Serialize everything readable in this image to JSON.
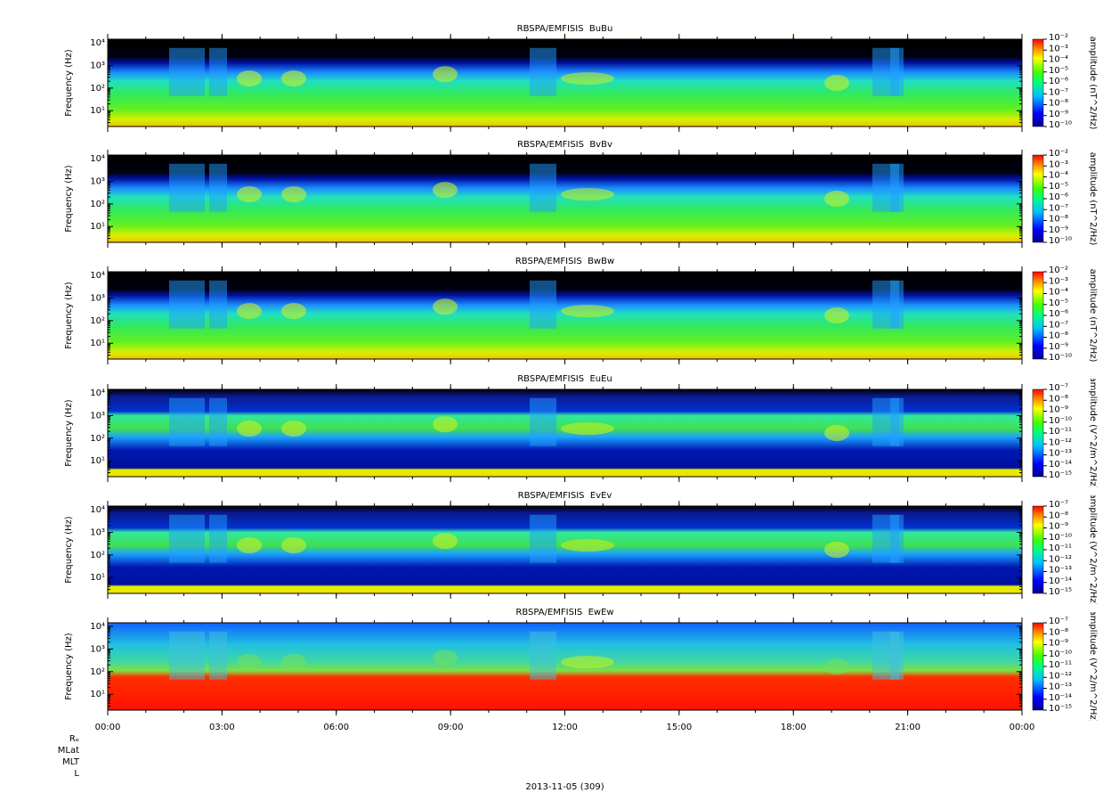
{
  "chart_data": [
    {
      "type": "spectrogram",
      "title": "RBSPA/EMFISIS  BuBu",
      "ylabel": "Frequency (Hz)",
      "ylog": true,
      "ylim": [
        2,
        14400
      ],
      "yticks": [
        {
          "value": 10,
          "label": "10¹"
        },
        {
          "value": 100,
          "label": "10²"
        },
        {
          "value": 1000,
          "label": "10³"
        },
        {
          "value": 10000,
          "label": "10⁴"
        }
      ],
      "xlim": [
        0,
        24
      ],
      "xticks": [
        0,
        3,
        6,
        9,
        12,
        15,
        18,
        21,
        24
      ],
      "zlabel": "amplitude (nT^2/Hz)",
      "zlog": true,
      "zlim": [
        1e-10,
        0.01
      ],
      "zticks": [
        {
          "value": 0.01,
          "label": "10⁻²"
        },
        {
          "value": 0.001,
          "label": "10⁻³"
        },
        {
          "value": 0.0001,
          "label": "10⁻⁴"
        },
        {
          "value": 1e-05,
          "label": "10⁻⁵"
        },
        {
          "value": 1e-06,
          "label": "10⁻⁶"
        },
        {
          "value": 1e-07,
          "label": "10⁻⁷"
        },
        {
          "value": 1e-08,
          "label": "10⁻⁸"
        },
        {
          "value": 1e-09,
          "label": "10⁻⁹"
        },
        {
          "value": 1e-10,
          "label": "10⁻¹⁰"
        }
      ]
    },
    {
      "type": "spectrogram",
      "title": "RBSPA/EMFISIS  BvBv",
      "ylabel": "Frequency (Hz)",
      "ylog": true,
      "ylim": [
        2,
        14400
      ],
      "yticks": [
        {
          "value": 10,
          "label": "10¹"
        },
        {
          "value": 100,
          "label": "10²"
        },
        {
          "value": 1000,
          "label": "10³"
        },
        {
          "value": 10000,
          "label": "10⁴"
        }
      ],
      "xlim": [
        0,
        24
      ],
      "xticks": [
        0,
        3,
        6,
        9,
        12,
        15,
        18,
        21,
        24
      ],
      "zlabel": "amplitude (nT^2/Hz)",
      "zlog": true,
      "zlim": [
        1e-10,
        0.01
      ],
      "zticks": [
        {
          "value": 0.01,
          "label": "10⁻²"
        },
        {
          "value": 0.001,
          "label": "10⁻³"
        },
        {
          "value": 0.0001,
          "label": "10⁻⁴"
        },
        {
          "value": 1e-05,
          "label": "10⁻⁵"
        },
        {
          "value": 1e-06,
          "label": "10⁻⁶"
        },
        {
          "value": 1e-07,
          "label": "10⁻⁷"
        },
        {
          "value": 1e-08,
          "label": "10⁻⁸"
        },
        {
          "value": 1e-09,
          "label": "10⁻⁹"
        },
        {
          "value": 1e-10,
          "label": "10⁻¹⁰"
        }
      ]
    },
    {
      "type": "spectrogram",
      "title": "RBSPA/EMFISIS  BwBw",
      "ylabel": "Frequency (Hz)",
      "ylog": true,
      "ylim": [
        2,
        14400
      ],
      "yticks": [
        {
          "value": 10,
          "label": "10¹"
        },
        {
          "value": 100,
          "label": "10²"
        },
        {
          "value": 1000,
          "label": "10³"
        },
        {
          "value": 10000,
          "label": "10⁴"
        }
      ],
      "xlim": [
        0,
        24
      ],
      "xticks": [
        0,
        3,
        6,
        9,
        12,
        15,
        18,
        21,
        24
      ],
      "zlabel": "amplitude (nT^2/Hz)",
      "zlog": true,
      "zlim": [
        1e-10,
        0.01
      ],
      "zticks": [
        {
          "value": 0.01,
          "label": "10⁻²"
        },
        {
          "value": 0.001,
          "label": "10⁻³"
        },
        {
          "value": 0.0001,
          "label": "10⁻⁴"
        },
        {
          "value": 1e-05,
          "label": "10⁻⁵"
        },
        {
          "value": 1e-06,
          "label": "10⁻⁶"
        },
        {
          "value": 1e-07,
          "label": "10⁻⁷"
        },
        {
          "value": 1e-08,
          "label": "10⁻⁸"
        },
        {
          "value": 1e-09,
          "label": "10⁻⁹"
        },
        {
          "value": 1e-10,
          "label": "10⁻¹⁰"
        }
      ]
    },
    {
      "type": "spectrogram",
      "title": "RBSPA/EMFISIS  EuEu",
      "ylabel": "Frequency (Hz)",
      "ylog": true,
      "ylim": [
        2,
        14400
      ],
      "yticks": [
        {
          "value": 10,
          "label": "10¹"
        },
        {
          "value": 100,
          "label": "10²"
        },
        {
          "value": 1000,
          "label": "10³"
        },
        {
          "value": 10000,
          "label": "10⁴"
        }
      ],
      "xlim": [
        0,
        24
      ],
      "xticks": [
        0,
        3,
        6,
        9,
        12,
        15,
        18,
        21,
        24
      ],
      "zlabel": "amplitude (V^2/m^2/Hz)",
      "zlog": true,
      "zlim": [
        1e-15,
        1e-07
      ],
      "zticks": [
        {
          "value": 1e-07,
          "label": "10⁻⁷"
        },
        {
          "value": 1e-08,
          "label": "10⁻⁸"
        },
        {
          "value": 1e-09,
          "label": "10⁻⁹"
        },
        {
          "value": 1e-10,
          "label": "10⁻¹⁰"
        },
        {
          "value": 1e-11,
          "label": "10⁻¹¹"
        },
        {
          "value": 1e-12,
          "label": "10⁻¹²"
        },
        {
          "value": 1e-13,
          "label": "10⁻¹³"
        },
        {
          "value": 1e-14,
          "label": "10⁻¹⁴"
        },
        {
          "value": 1e-15,
          "label": "10⁻¹⁵"
        }
      ]
    },
    {
      "type": "spectrogram",
      "title": "RBSPA/EMFISIS  EvEv",
      "ylabel": "Frequency (Hz)",
      "ylog": true,
      "ylim": [
        2,
        14400
      ],
      "yticks": [
        {
          "value": 10,
          "label": "10¹"
        },
        {
          "value": 100,
          "label": "10²"
        },
        {
          "value": 1000,
          "label": "10³"
        },
        {
          "value": 10000,
          "label": "10⁴"
        }
      ],
      "xlim": [
        0,
        24
      ],
      "xticks": [
        0,
        3,
        6,
        9,
        12,
        15,
        18,
        21,
        24
      ],
      "zlabel": "amplitude (V^2/m^2/Hz)",
      "zlog": true,
      "zlim": [
        1e-15,
        1e-07
      ],
      "zticks": [
        {
          "value": 1e-07,
          "label": "10⁻⁷"
        },
        {
          "value": 1e-08,
          "label": "10⁻⁸"
        },
        {
          "value": 1e-09,
          "label": "10⁻⁹"
        },
        {
          "value": 1e-10,
          "label": "10⁻¹⁰"
        },
        {
          "value": 1e-11,
          "label": "10⁻¹¹"
        },
        {
          "value": 1e-12,
          "label": "10⁻¹²"
        },
        {
          "value": 1e-13,
          "label": "10⁻¹³"
        },
        {
          "value": 1e-14,
          "label": "10⁻¹⁴"
        },
        {
          "value": 1e-15,
          "label": "10⁻¹⁵"
        }
      ]
    },
    {
      "type": "spectrogram",
      "title": "RBSPA/EMFISIS  EwEw",
      "ylabel": "Frequency (Hz)",
      "ylog": true,
      "ylim": [
        2,
        14400
      ],
      "yticks": [
        {
          "value": 10,
          "label": "10¹"
        },
        {
          "value": 100,
          "label": "10²"
        },
        {
          "value": 1000,
          "label": "10³"
        },
        {
          "value": 10000,
          "label": "10⁴"
        }
      ],
      "xlim": [
        0,
        24
      ],
      "xticks": [
        {
          "value": 0,
          "label": "00:00"
        },
        {
          "value": 3,
          "label": "03:00"
        },
        {
          "value": 6,
          "label": "06:00"
        },
        {
          "value": 9,
          "label": "09:00"
        },
        {
          "value": 12,
          "label": "12:00"
        },
        {
          "value": 15,
          "label": "15:00"
        },
        {
          "value": 18,
          "label": "18:00"
        },
        {
          "value": 21,
          "label": "21:00"
        },
        {
          "value": 24,
          "label": "00:00"
        }
      ],
      "xlabel": "2013-11-05 (309)",
      "ephemeris_labels": [
        "Rₑ",
        "MLat",
        "MLT",
        "L"
      ],
      "zlabel": "amplitude (V^2/m^2/Hz)",
      "zlog": true,
      "zlim": [
        1e-15,
        1e-07
      ],
      "zticks": [
        {
          "value": 1e-07,
          "label": "10⁻⁷"
        },
        {
          "value": 1e-08,
          "label": "10⁻⁸"
        },
        {
          "value": 1e-09,
          "label": "10⁻⁹"
        },
        {
          "value": 1e-10,
          "label": "10⁻¹⁰"
        },
        {
          "value": 1e-11,
          "label": "10⁻¹¹"
        },
        {
          "value": 1e-12,
          "label": "10⁻¹²"
        },
        {
          "value": 1e-13,
          "label": "10⁻¹³"
        },
        {
          "value": 1e-14,
          "label": "10⁻¹⁴"
        },
        {
          "value": 1e-15,
          "label": "10⁻¹⁵"
        }
      ]
    }
  ]
}
